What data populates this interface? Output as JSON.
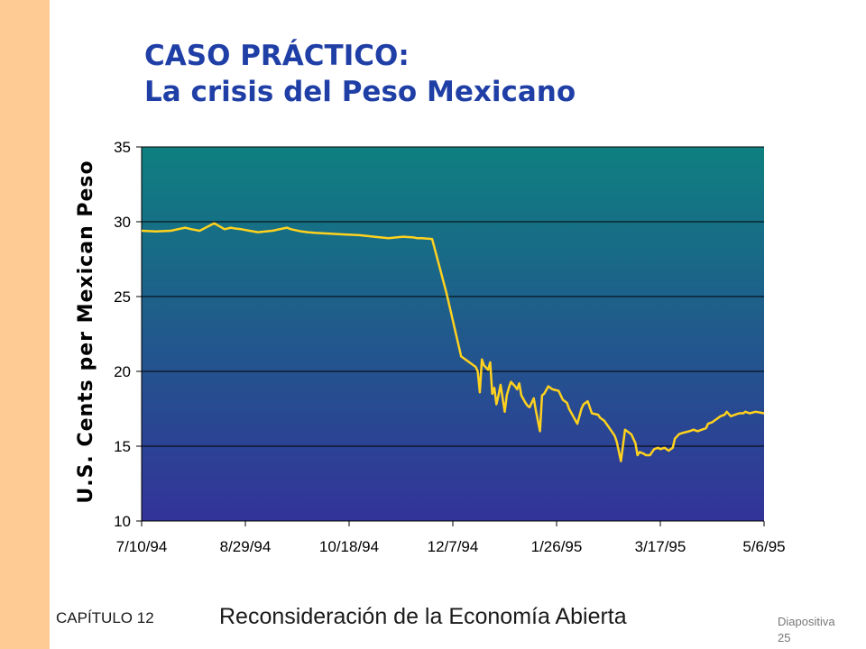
{
  "slide": {
    "title_line1": "CASO PRÁCTICO:",
    "title_line2": "La crisis del Peso Mexicano",
    "chapter": "CAPÍTULO 12",
    "subject": "Reconsideración de la Economía Abierta",
    "slide_word": "Diapositiva",
    "slide_number": "25"
  },
  "colors": {
    "side_band": "#FDCB93",
    "title": "#1F3FA6",
    "plot_top": "#0E8080",
    "plot_bottom": "#333399",
    "series_line": "#FFD21E"
  },
  "chart_data": {
    "type": "line",
    "title": "",
    "xlabel": "",
    "ylabel": "U.S. Cents per Mexican Peso",
    "ylim": [
      10,
      35
    ],
    "yticks": [
      10,
      15,
      20,
      25,
      30,
      35
    ],
    "xticks": [
      "7/10/94",
      "8/29/94",
      "10/18/94",
      "12/7/94",
      "1/26/95",
      "3/17/95",
      "5/6/95"
    ],
    "x_units": "days since 7/10/94",
    "xlim": [
      0,
      300
    ],
    "grid": "horizontal",
    "legend": "none",
    "series": [
      {
        "x": [
          0,
          7,
          14,
          21,
          24,
          28,
          35,
          40,
          43,
          45,
          48,
          52,
          56,
          63,
          70,
          72,
          77,
          80,
          84,
          91,
          98,
          105,
          112,
          119,
          126,
          131,
          133,
          135,
          140,
          147,
          154,
          161,
          162,
          163,
          164,
          165,
          167,
          168,
          169,
          170,
          171,
          172,
          173,
          175,
          176,
          177,
          178,
          180,
          181,
          182,
          183,
          185,
          186,
          187,
          189,
          190,
          192,
          193,
          194,
          196,
          198,
          201,
          203,
          205,
          206,
          208,
          210,
          212,
          213,
          215,
          217,
          220,
          221,
          223,
          224,
          226,
          228,
          229,
          231,
          233,
          236,
          238,
          239,
          240,
          242,
          243,
          245,
          247,
          249,
          250,
          252,
          254,
          256,
          257,
          259,
          261,
          264,
          266,
          268,
          270,
          272,
          273,
          275,
          277,
          279,
          281,
          282,
          284,
          286,
          288,
          290,
          291,
          293,
          296,
          300
        ],
        "values": [
          29.4,
          29.35,
          29.4,
          29.6,
          29.5,
          29.4,
          29.9,
          29.5,
          29.6,
          29.55,
          29.5,
          29.4,
          29.3,
          29.4,
          29.6,
          29.5,
          29.35,
          29.3,
          29.25,
          29.2,
          29.15,
          29.1,
          29.0,
          28.9,
          29.0,
          28.95,
          28.9,
          28.9,
          28.85,
          25.2,
          21.0,
          20.3,
          20.0,
          18.6,
          20.8,
          20.4,
          20.1,
          20.6,
          18.5,
          18.9,
          17.8,
          18.4,
          19.1,
          17.3,
          18.4,
          18.9,
          19.3,
          19.0,
          18.8,
          19.2,
          18.4,
          17.9,
          17.7,
          17.6,
          18.2,
          17.4,
          16.0,
          18.4,
          18.5,
          19.0,
          18.8,
          18.7,
          18.1,
          17.9,
          17.5,
          17.0,
          16.5,
          17.5,
          17.8,
          18.0,
          17.2,
          17.1,
          16.9,
          16.7,
          16.5,
          16.1,
          15.7,
          15.3,
          14.0,
          16.1,
          15.8,
          15.2,
          14.4,
          14.6,
          14.5,
          14.4,
          14.4,
          14.8,
          14.9,
          14.8,
          14.9,
          14.7,
          14.9,
          15.5,
          15.8,
          15.9,
          16.0,
          16.1,
          16.0,
          16.1,
          16.2,
          16.5,
          16.6,
          16.8,
          17.0,
          17.1,
          17.3,
          17.0,
          17.1,
          17.2,
          17.2,
          17.3,
          17.2,
          17.3,
          17.2
        ]
      }
    ]
  }
}
